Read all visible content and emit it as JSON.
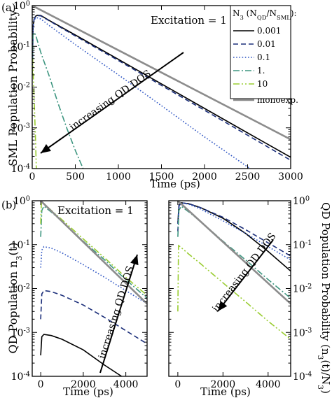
{
  "chart_data": [
    {
      "panel_label": "(a)",
      "type": "line",
      "xlabel": "Time (ps)",
      "ylabel": "SML Population Probability",
      "xlim": [
        0,
        3000
      ],
      "ylim": [
        0.0001,
        1.0
      ],
      "yscale": "log",
      "x_ticks": [
        "0",
        "500",
        "1000",
        "1500",
        "2000",
        "2500",
        "3000"
      ],
      "y_ticks": [
        "10^0",
        "10^-1",
        "10^-2",
        "10^-3",
        "10^-4"
      ],
      "annotation": "Excitation = 1",
      "arrow_label": "increasing QD DOS",
      "legend_title": "N_3 (N_QD/N_SML):",
      "legend_position": "top-right",
      "series": [
        {
          "name": "0.001",
          "color": "#000000",
          "style": "solid",
          "points": [
            [
              0,
              0.02
            ],
            [
              10,
              0.3
            ],
            [
              20,
              0.45
            ],
            [
              40,
              0.55
            ],
            [
              60,
              0.58
            ],
            [
              100,
              0.57
            ],
            [
              200,
              0.43
            ],
            [
              500,
              0.19
            ],
            [
              1000,
              0.048
            ],
            [
              1500,
              0.012
            ],
            [
              2000,
              0.003
            ],
            [
              2500,
              0.00075
            ],
            [
              3000,
              0.00019
            ]
          ]
        },
        {
          "name": "0.01",
          "color": "#1c2f7a",
          "style": "dashed",
          "points": [
            [
              0,
              0.02
            ],
            [
              10,
              0.3
            ],
            [
              20,
              0.45
            ],
            [
              40,
              0.55
            ],
            [
              60,
              0.57
            ],
            [
              100,
              0.56
            ],
            [
              200,
              0.42
            ],
            [
              500,
              0.18
            ],
            [
              1000,
              0.045
            ],
            [
              1500,
              0.011
            ],
            [
              2000,
              0.0027
            ],
            [
              2500,
              0.00066
            ],
            [
              3000,
              0.00016
            ]
          ]
        },
        {
          "name": "0.1",
          "color": "#2f56c4",
          "style": "dotted",
          "points": [
            [
              0,
              0.02
            ],
            [
              10,
              0.3
            ],
            [
              20,
              0.43
            ],
            [
              40,
              0.5
            ],
            [
              60,
              0.5
            ],
            [
              100,
              0.47
            ],
            [
              200,
              0.32
            ],
            [
              500,
              0.11
            ],
            [
              1000,
              0.02
            ],
            [
              1500,
              0.0035
            ],
            [
              2000,
              0.0006
            ],
            [
              2500,
              0.00011
            ],
            [
              2600,
              8e-05
            ]
          ]
        },
        {
          "name": "1.",
          "color": "#3e9680",
          "style": "dashdot",
          "points": [
            [
              0,
              0.02
            ],
            [
              10,
              0.2
            ],
            [
              20,
              0.22
            ],
            [
              40,
              0.19
            ],
            [
              100,
              0.07
            ],
            [
              200,
              0.018
            ],
            [
              300,
              0.004
            ],
            [
              400,
              0.001
            ],
            [
              500,
              0.00028
            ],
            [
              600,
              9e-05
            ],
            [
              700,
              4e-05
            ]
          ]
        },
        {
          "name": "10",
          "color": "#9acd32",
          "style": "dashdotdot",
          "points": [
            [
              0,
              0.02
            ],
            [
              5,
              0.05
            ],
            [
              10,
              0.028
            ],
            [
              20,
              0.0068
            ],
            [
              30,
              0.0017
            ],
            [
              40,
              0.0004
            ],
            [
              50,
              7e-05
            ]
          ]
        },
        {
          "name": "monoexp.",
          "color": "#8c8c8c",
          "style": "solid-thick",
          "points": [
            [
              0,
              1.0
            ],
            [
              3000,
              0.00052
            ]
          ]
        }
      ]
    },
    {
      "panel_label": "(b)",
      "type": "line",
      "xlabel": "Time (ps)",
      "ylabel": "QD Population n_3(t)",
      "xlim": [
        -400,
        5000
      ],
      "ylim": [
        0.0001,
        1.0
      ],
      "yscale": "log",
      "x_ticks": [
        "0",
        "2000",
        "4000"
      ],
      "y_ticks": [
        "10^0",
        "10^-1",
        "10^-2",
        "10^-3",
        "10^-4"
      ],
      "annotation": "Excitation = 1",
      "arrow_label": "increasing QD DOS",
      "series": [
        {
          "name": "0.001",
          "color": "#000000",
          "style": "solid",
          "points": [
            [
              0,
              0.0003
            ],
            [
              50,
              0.0008
            ],
            [
              150,
              0.0009
            ],
            [
              500,
              0.00085
            ],
            [
              1000,
              0.0007
            ],
            [
              2000,
              0.0004
            ],
            [
              3000,
              0.00018
            ],
            [
              3800,
              0.0001
            ]
          ]
        },
        {
          "name": "0.01",
          "color": "#1c2f7a",
          "style": "dashed",
          "points": [
            [
              0,
              0.002
            ],
            [
              50,
              0.0075
            ],
            [
              150,
              0.009
            ],
            [
              500,
              0.0085
            ],
            [
              1000,
              0.007
            ],
            [
              2000,
              0.0042
            ],
            [
              3000,
              0.0022
            ],
            [
              4000,
              0.0011
            ],
            [
              5000,
              0.00055
            ]
          ]
        },
        {
          "name": "0.1",
          "color": "#2f56c4",
          "style": "dotted",
          "points": [
            [
              0,
              0.03
            ],
            [
              50,
              0.075
            ],
            [
              150,
              0.09
            ],
            [
              500,
              0.083
            ],
            [
              1000,
              0.065
            ],
            [
              2000,
              0.035
            ],
            [
              3000,
              0.018
            ],
            [
              4000,
              0.009
            ],
            [
              5000,
              0.0045
            ]
          ]
        },
        {
          "name": "1.",
          "color": "#3e9680",
          "style": "dashdot",
          "points": [
            [
              0,
              0.15
            ],
            [
              50,
              0.6
            ],
            [
              150,
              0.75
            ],
            [
              500,
              0.55
            ],
            [
              1000,
              0.34
            ],
            [
              2000,
              0.12
            ],
            [
              3000,
              0.045
            ],
            [
              4000,
              0.016
            ],
            [
              5000,
              0.006
            ]
          ]
        },
        {
          "name": "10",
          "color": "#9acd32",
          "style": "dashdotdot",
          "points": [
            [
              0,
              0.3
            ],
            [
              30,
              0.95
            ],
            [
              100,
              0.9
            ],
            [
              500,
              0.6
            ],
            [
              1000,
              0.37
            ],
            [
              2000,
              0.135
            ],
            [
              3000,
              0.05
            ],
            [
              4000,
              0.018
            ],
            [
              5000,
              0.007
            ]
          ]
        },
        {
          "name": "monoexp.",
          "color": "#8c8c8c",
          "style": "solid-thick",
          "points": [
            [
              0,
              1.0
            ],
            [
              5000,
              0.0045
            ]
          ]
        }
      ]
    },
    {
      "panel_label": "",
      "type": "line",
      "xlabel": "Time (ps)",
      "ylabel": "QD Population Probability (n_3(t)/N_3)",
      "xlim": [
        -400,
        5000
      ],
      "ylim": [
        0.0001,
        1.0
      ],
      "yscale": "log",
      "x_ticks": [
        "0",
        "2000",
        "4000"
      ],
      "y_ticks": [
        "10^0",
        "10^-1",
        "10^-2",
        "10^-3",
        "10^-4"
      ],
      "arrow_label": "increasing QD DOS",
      "series": [
        {
          "name": "0.001",
          "color": "#000000",
          "style": "solid",
          "points": [
            [
              0,
              0.3
            ],
            [
              50,
              0.8
            ],
            [
              150,
              0.9
            ],
            [
              500,
              0.85
            ],
            [
              1000,
              0.7
            ],
            [
              2000,
              0.4
            ],
            [
              3000,
              0.18
            ],
            [
              4000,
              0.07
            ],
            [
              5000,
              0.025
            ]
          ]
        },
        {
          "name": "0.01",
          "color": "#1c2f7a",
          "style": "dashed",
          "points": [
            [
              0,
              0.2
            ],
            [
              50,
              0.75
            ],
            [
              150,
              0.9
            ],
            [
              500,
              0.85
            ],
            [
              1000,
              0.7
            ],
            [
              2000,
              0.42
            ],
            [
              3000,
              0.22
            ],
            [
              4000,
              0.11
            ],
            [
              5000,
              0.055
            ]
          ]
        },
        {
          "name": "0.1",
          "color": "#2f56c4",
          "style": "dotted",
          "points": [
            [
              0,
              0.3
            ],
            [
              50,
              0.75
            ],
            [
              150,
              0.9
            ],
            [
              500,
              0.83
            ],
            [
              1000,
              0.65
            ],
            [
              2000,
              0.35
            ],
            [
              3000,
              0.18
            ],
            [
              4000,
              0.09
            ],
            [
              5000,
              0.045
            ]
          ]
        },
        {
          "name": "1.",
          "color": "#3e9680",
          "style": "dashdot",
          "points": [
            [
              0,
              0.15
            ],
            [
              50,
              0.6
            ],
            [
              150,
              0.75
            ],
            [
              500,
              0.55
            ],
            [
              1000,
              0.34
            ],
            [
              2000,
              0.12
            ],
            [
              3000,
              0.045
            ],
            [
              4000,
              0.016
            ],
            [
              5000,
              0.006
            ]
          ]
        },
        {
          "name": "10",
          "color": "#9acd32",
          "style": "dashdotdot",
          "points": [
            [
              0,
              0.003
            ],
            [
              30,
              0.095
            ],
            [
              100,
              0.09
            ],
            [
              500,
              0.06
            ],
            [
              1000,
              0.037
            ],
            [
              2000,
              0.0135
            ],
            [
              3000,
              0.005
            ],
            [
              4000,
              0.0018
            ],
            [
              5000,
              0.0007
            ]
          ]
        },
        {
          "name": "monoexp.",
          "color": "#8c8c8c",
          "style": "solid-thick",
          "points": [
            [
              0,
              1.0
            ],
            [
              5000,
              0.0045
            ]
          ]
        }
      ]
    }
  ]
}
